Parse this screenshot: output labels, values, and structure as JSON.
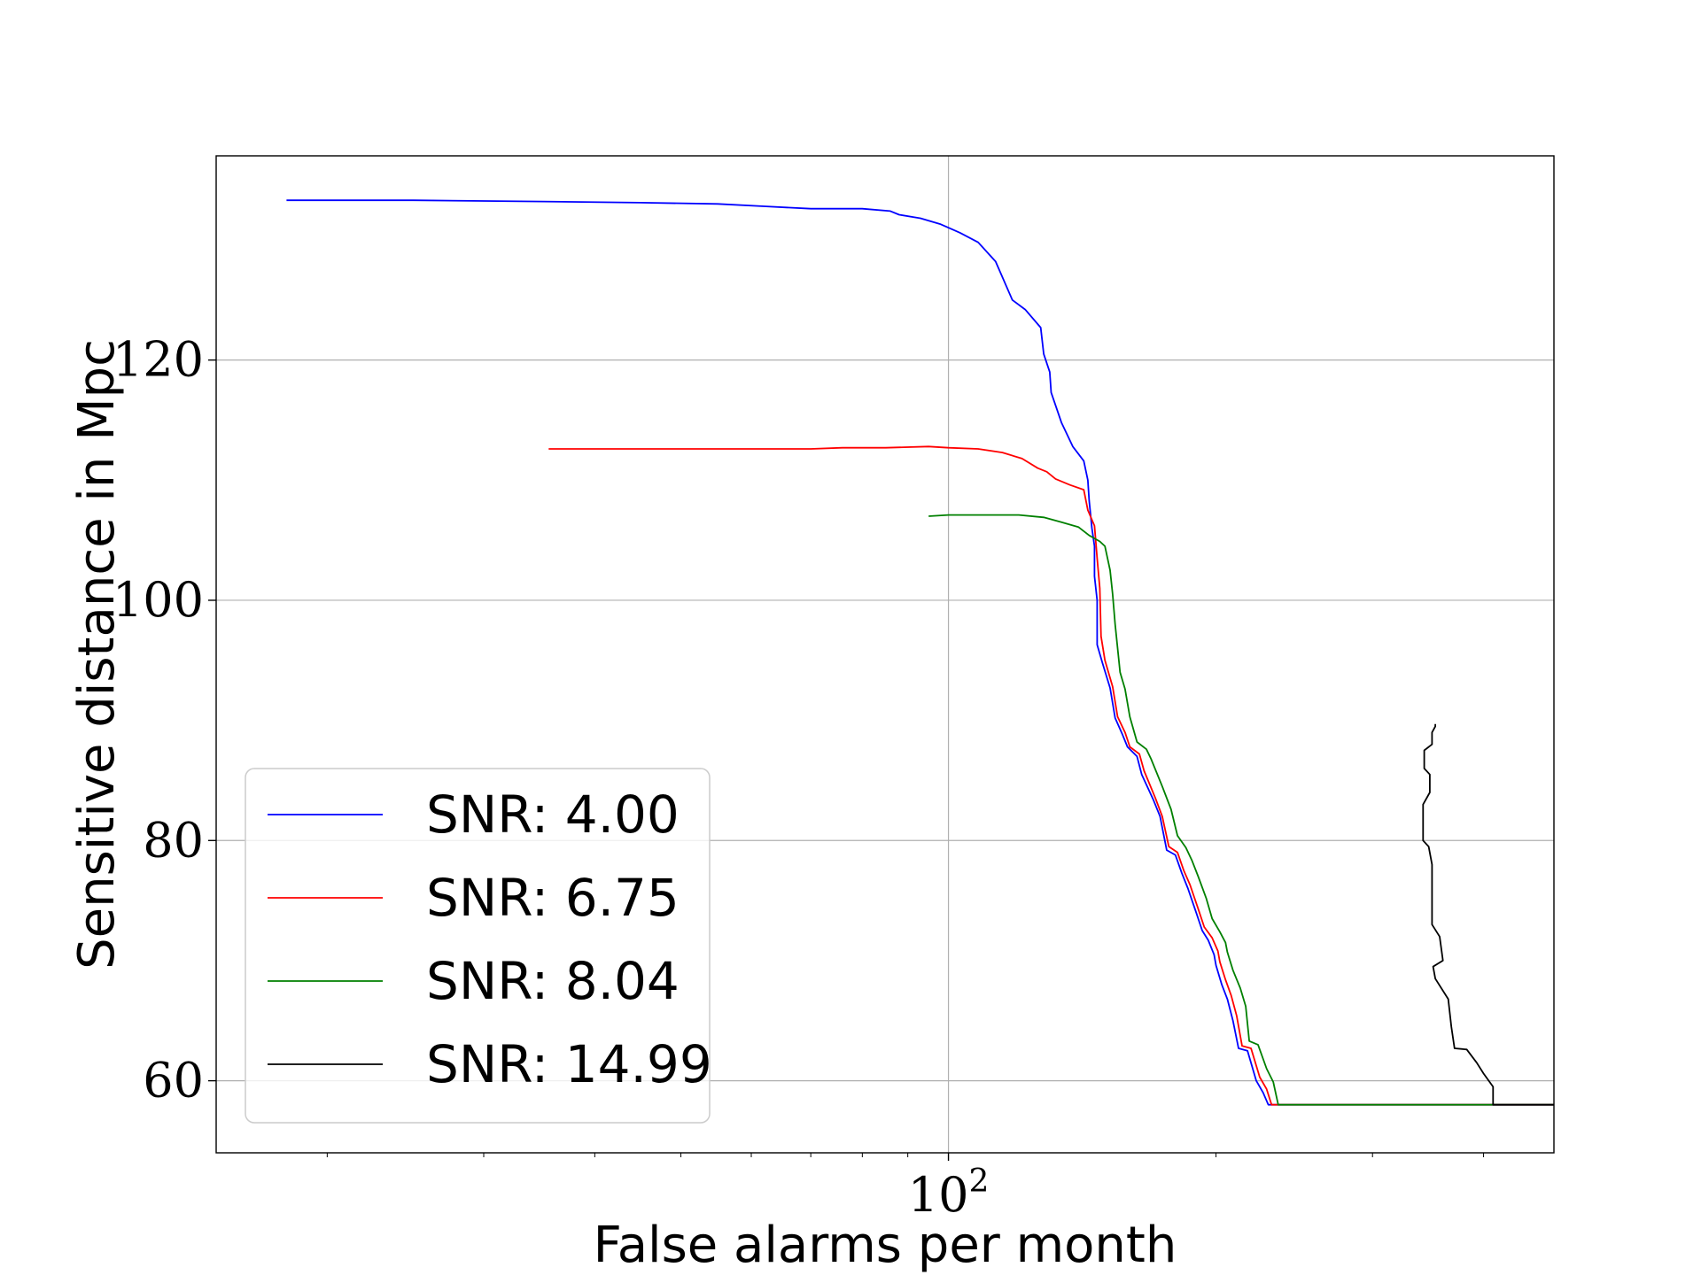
{
  "chart_data": {
    "type": "line",
    "xlabel": "False alarms per month",
    "ylabel": "Sensitive distance in Mpc",
    "xscale": "log",
    "xlim": [
      15,
      480
    ],
    "ylim": [
      54,
      137
    ],
    "xticks": [
      {
        "value": 100,
        "base": "10",
        "exp": "2"
      }
    ],
    "yticks": [
      60,
      80,
      100,
      120
    ],
    "grid": true,
    "legend_position": "lower left",
    "series": [
      {
        "name": "SNR: 4.00",
        "color": "#0000ff",
        "points": [
          [
            18.0,
            133.3
          ],
          [
            25,
            133.3
          ],
          [
            35,
            133.2
          ],
          [
            45,
            133.1
          ],
          [
            55,
            133.0
          ],
          [
            62,
            132.8
          ],
          [
            70,
            132.6
          ],
          [
            80,
            132.6
          ],
          [
            86,
            132.4
          ],
          [
            88,
            132.1
          ],
          [
            93,
            131.8
          ],
          [
            98,
            131.3
          ],
          [
            103,
            130.6
          ],
          [
            108,
            129.8
          ],
          [
            113,
            128.2
          ],
          [
            118,
            125.0
          ],
          [
            122,
            124.2
          ],
          [
            127,
            122.7
          ],
          [
            128,
            120.5
          ],
          [
            130,
            119.0
          ],
          [
            130.5,
            117.3
          ],
          [
            134,
            114.8
          ],
          [
            138,
            112.8
          ],
          [
            142,
            111.6
          ],
          [
            143.5,
            110.0
          ],
          [
            144,
            108.3
          ],
          [
            145,
            106.0
          ],
          [
            146,
            104.5
          ],
          [
            146,
            102.0
          ],
          [
            147,
            100.0
          ],
          [
            147,
            96.3
          ],
          [
            149,
            94.8
          ],
          [
            152,
            92.7
          ],
          [
            154,
            90.2
          ],
          [
            157,
            88.8
          ],
          [
            159,
            87.8
          ],
          [
            163,
            87.0
          ],
          [
            165,
            85.5
          ],
          [
            170,
            83.4
          ],
          [
            173,
            82.0
          ],
          [
            176,
            79.2
          ],
          [
            180,
            78.8
          ],
          [
            183,
            77.3
          ],
          [
            186,
            76.0
          ],
          [
            190,
            74.0
          ],
          [
            193,
            72.5
          ],
          [
            196,
            71.7
          ],
          [
            199,
            70.5
          ],
          [
            200,
            69.6
          ],
          [
            203,
            68.0
          ],
          [
            206,
            66.8
          ],
          [
            209,
            65.0
          ],
          [
            212,
            62.7
          ],
          [
            217,
            62.5
          ],
          [
            222,
            60.0
          ],
          [
            226,
            59.0
          ],
          [
            229,
            58.0
          ],
          [
            480,
            58.0
          ]
        ]
      },
      {
        "name": "SNR: 6.75",
        "color": "#ff0000",
        "points": [
          [
            35.5,
            112.6
          ],
          [
            50,
            112.6
          ],
          [
            70,
            112.6
          ],
          [
            76,
            112.7
          ],
          [
            85,
            112.7
          ],
          [
            95,
            112.8
          ],
          [
            100,
            112.7
          ],
          [
            108,
            112.6
          ],
          [
            115,
            112.3
          ],
          [
            121,
            111.8
          ],
          [
            126,
            111.0
          ],
          [
            127,
            110.9
          ],
          [
            129,
            110.7
          ],
          [
            132,
            110.1
          ],
          [
            137,
            109.6
          ],
          [
            142,
            109.2
          ],
          [
            143.5,
            107.5
          ],
          [
            146,
            106.2
          ],
          [
            147,
            103.5
          ],
          [
            148,
            101.0
          ],
          [
            148.5,
            97.0
          ],
          [
            150,
            95.0
          ],
          [
            153,
            92.8
          ],
          [
            155,
            90.3
          ],
          [
            158,
            89.0
          ],
          [
            160,
            87.8
          ],
          [
            164,
            87.2
          ],
          [
            166,
            85.8
          ],
          [
            171,
            83.5
          ],
          [
            174,
            82.0
          ],
          [
            177,
            79.5
          ],
          [
            181,
            79.0
          ],
          [
            184,
            77.5
          ],
          [
            187,
            76.3
          ],
          [
            191,
            74.3
          ],
          [
            194,
            72.8
          ],
          [
            198,
            71.9
          ],
          [
            201,
            70.8
          ],
          [
            202,
            69.9
          ],
          [
            205,
            68.4
          ],
          [
            208,
            67.1
          ],
          [
            211,
            65.4
          ],
          [
            214,
            62.9
          ],
          [
            219,
            62.7
          ],
          [
            224,
            60.3
          ],
          [
            228,
            59.3
          ],
          [
            231,
            58.0
          ],
          [
            480,
            58.0
          ]
        ]
      },
      {
        "name": "SNR: 8.04",
        "color": "#008000",
        "points": [
          [
            95,
            107.0
          ],
          [
            100,
            107.1
          ],
          [
            110,
            107.1
          ],
          [
            120,
            107.1
          ],
          [
            128,
            106.9
          ],
          [
            134,
            106.5
          ],
          [
            140,
            106.1
          ],
          [
            144,
            105.4
          ],
          [
            148,
            104.9
          ],
          [
            150,
            104.5
          ],
          [
            152,
            102.5
          ],
          [
            153,
            100.5
          ],
          [
            154,
            98.0
          ],
          [
            155,
            96.0
          ],
          [
            156,
            94.0
          ],
          [
            158,
            92.6
          ],
          [
            160,
            90.3
          ],
          [
            163,
            88.2
          ],
          [
            167,
            87.6
          ],
          [
            169,
            86.8
          ],
          [
            174,
            84.5
          ],
          [
            178,
            82.6
          ],
          [
            181,
            80.4
          ],
          [
            185,
            79.4
          ],
          [
            188,
            78.3
          ],
          [
            191,
            77.0
          ],
          [
            195,
            75.2
          ],
          [
            198,
            73.5
          ],
          [
            202,
            72.4
          ],
          [
            205,
            71.5
          ],
          [
            206,
            70.7
          ],
          [
            209,
            69.2
          ],
          [
            213,
            67.7
          ],
          [
            216,
            66.2
          ],
          [
            218,
            63.3
          ],
          [
            223,
            63.0
          ],
          [
            228,
            61.0
          ],
          [
            232,
            59.9
          ],
          [
            235,
            58.0
          ],
          [
            480,
            58.0
          ]
        ]
      },
      {
        "name": "SNR: 14.99",
        "color": "#000000",
        "points": [
          [
            480,
            58.0
          ],
          [
            410,
            58.0
          ],
          [
            410,
            59.5
          ],
          [
            400,
            60.6
          ],
          [
            393,
            61.5
          ],
          [
            383,
            62.6
          ],
          [
            371,
            62.7
          ],
          [
            368,
            64.5
          ],
          [
            365,
            66.8
          ],
          [
            353,
            68.5
          ],
          [
            351,
            69.5
          ],
          [
            360,
            70.0
          ],
          [
            357,
            72.0
          ],
          [
            350,
            73.0
          ],
          [
            350,
            78.0
          ],
          [
            347,
            79.5
          ],
          [
            342,
            80.0
          ],
          [
            342,
            83.0
          ],
          [
            348,
            84.0
          ],
          [
            348,
            85.5
          ],
          [
            343,
            86.0
          ],
          [
            343,
            87.5
          ],
          [
            350,
            88.0
          ],
          [
            350,
            89.0
          ],
          [
            353,
            89.5
          ],
          [
            353,
            89.7
          ]
        ]
      }
    ]
  }
}
